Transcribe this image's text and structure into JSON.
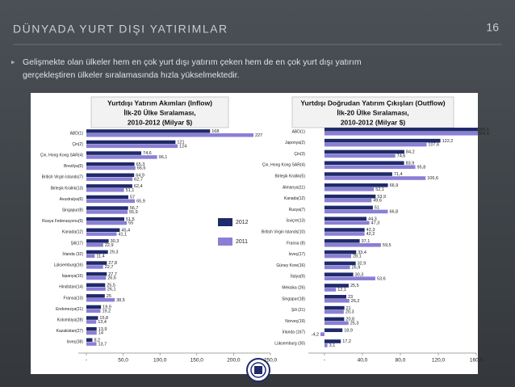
{
  "slide": {
    "title": "DÜNYADA YURT DIŞI YATIRIMLAR",
    "page_number": "16",
    "bullet": [
      "Gelişmekte olan ülkeler hem en çok yurt dışı yatırım çeken hem de en çok yurt dışı yatırım",
      "gerçekleştiren ülkeler sıralamasında hızla yükselmektedir."
    ]
  },
  "chart_data": [
    {
      "type": "barh",
      "title": [
        "Yurtdışı Yatırım Akımları (Inflow)",
        "İlk-20 Ülke Sıralaması,",
        "2010-2012 (Milyar $)"
      ],
      "categories": [
        "ABD(1)",
        "Çin(2)",
        "Çin, Hong Kong SAR(4)",
        "Brezilya(5)",
        "British Virgin Islands(7)",
        "Birleşik Krallık(13)",
        "Avustralya(6)",
        "Singapur(8)",
        "Rusya Federasyonu(9)",
        "Kanada(12)",
        "Şili(17)",
        "İrlanda (32)",
        "Lüksemburg(16)",
        "İspanya(15)",
        "Hindistan(14)",
        "Fransa(13)",
        "Endonezya(21)",
        "Kolombiya(28)",
        "Kazakistan(27)",
        "Isveç(38)"
      ],
      "series": [
        {
          "name": "2012",
          "color": "#1f2a6b",
          "values": [
            168,
            121,
            74.6,
            65.3,
            64.9,
            62.4,
            57,
            56.7,
            51.5,
            45.4,
            30.3,
            29.3,
            27.8,
            27.7,
            25.5,
            25,
            19.9,
            15.8,
            13.9,
            8.2
          ],
          "value_labels": [
            "168",
            "121",
            "74,6",
            "65,3",
            "64,9",
            "62,4",
            "57",
            "56,7",
            "51,5",
            "45,4",
            "30,3",
            "29,3",
            "27,8",
            "27,7",
            "25,5",
            "25",
            "19,9",
            "15,8",
            "13,9",
            "8,2"
          ]
        },
        {
          "name": "2011",
          "color": "#8a7fd6",
          "values": [
            227,
            124,
            96.1,
            66.6,
            62.7,
            51.1,
            65.9,
            55.9,
            55,
            41.1,
            22.9,
            11.4,
            22.7,
            26.6,
            26.1,
            38.5,
            19.2,
            13.4,
            14,
            13.7
          ],
          "value_labels": [
            "227",
            "124",
            "96,1",
            "66,6",
            "62,7",
            "51,1",
            "65,9",
            "55,9",
            "55",
            "41,1",
            "22,9",
            "11,4",
            "22,7",
            "26,6",
            "26,1",
            "38,5",
            "19,2",
            "13,4",
            "14",
            "13,7"
          ]
        }
      ],
      "xlim": [
        0,
        250
      ],
      "xticks": [
        {
          "value": 0,
          "label": "-"
        },
        {
          "value": 50,
          "label": "50,0"
        },
        {
          "value": 100,
          "label": "100,0"
        },
        {
          "value": 150,
          "label": "150,0"
        },
        {
          "value": 200,
          "label": "200,0"
        },
        {
          "value": 250,
          "label": "250,0"
        }
      ],
      "legend": "inside"
    },
    {
      "type": "barh",
      "title": [
        "Yurtdışı Doğrudan Yatırım Çıkışları (Outflow)",
        "İlk-20 Ülke Sıralaması,",
        "2010-2012 (Milyar $)"
      ],
      "categories": [
        "ABD(1)",
        "Japonya(2)",
        "Çin(3)",
        "Çin, Hong Kong SAR(4)",
        "Birleşik Krallık(5)",
        "Almanya(11)",
        "Kanada(12)",
        "Rusya(7)",
        "İsviçre(13)",
        "British Virgin Islands(10)",
        "Fransa (8)",
        "İsveç(17)",
        "Güney Kore(16)",
        "İtalya(9)",
        "Meksika (26)",
        "Singapur(18)",
        "Şili (21)",
        "Norveç(19)",
        "İrlanda (167)",
        "Lüksemburg (30)"
      ],
      "series": [
        {
          "name": "2012",
          "color": "#1f2a6b",
          "values": [
            396.6,
            122.2,
            84.2,
            83.9,
            71.4,
            66.9,
            53.9,
            51,
            44.3,
            42.3,
            37.1,
            33.4,
            32.9,
            30.3,
            25.5,
            23,
            21,
            20.8,
            18.9,
            17.2
          ],
          "value_labels": [
            "396,6",
            "122,2",
            "84,2",
            "83,9",
            "71,4",
            "66,9",
            "53,9",
            "51",
            "44,3",
            "42,3",
            "37,1",
            "33,4",
            "32,9",
            "30,3",
            "25,5",
            "23",
            "21",
            "20,8",
            "18,9",
            "17,2"
          ]
        },
        {
          "name": "2011",
          "color": "#8a7fd6",
          "values": [
            304.4,
            107.6,
            74.6,
            95.8,
            106.6,
            52.1,
            49.6,
            66.8,
            47.3,
            42.2,
            59.5,
            28.1,
            26.9,
            53.6,
            12.1,
            26.2,
            20.3,
            25.3,
            -4.2,
            3.1
          ],
          "value_labels": [
            "304,4",
            "107,6",
            "74,6",
            "95,8",
            "106,6",
            "52,1",
            "49,6",
            "66,8",
            "47,3",
            "42,2",
            "59,5",
            "28,1",
            "26,9",
            "53,6",
            "12,1",
            "26,2",
            "20,3",
            "25,3",
            "-4,2",
            "3,1"
          ]
        }
      ],
      "xlim": [
        -17,
        160
      ],
      "xticks": [
        {
          "value": 0,
          "label": "-"
        },
        {
          "value": 40,
          "label": "40,0"
        },
        {
          "value": 80,
          "label": "80,0"
        },
        {
          "value": 120,
          "label": "120,0"
        },
        {
          "value": 160,
          "label": "160,0"
        }
      ]
    }
  ]
}
